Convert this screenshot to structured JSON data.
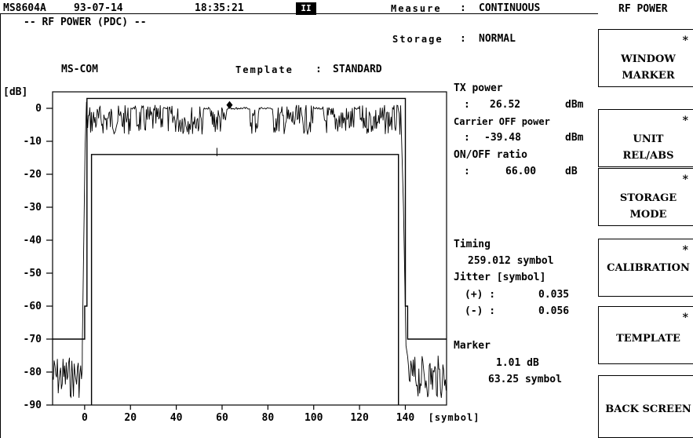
{
  "header": {
    "model": "MS8604A",
    "date": "93-07-14",
    "time": "18:35:21",
    "indicator": "II",
    "measure_label": "Measure",
    "measure_value": "CONTINUOUS",
    "screen_title": "-- RF POWER (PDC) --",
    "storage_label": "Storage",
    "storage_value": "NORMAL",
    "template_label": "Template",
    "template_value": "STANDARD",
    "mode_label": "MS-COM",
    "panel_title": "RF POWER"
  },
  "readouts": {
    "tx_power_label": "TX power",
    "tx_power_value": "26.52",
    "tx_power_unit": "dBm",
    "carrier_off_label": "Carrier OFF power",
    "carrier_off_value": "-39.48",
    "carrier_off_unit": "dBm",
    "onoff_label": "ON/OFF ratio",
    "onoff_value": "66.00",
    "onoff_unit": "dB",
    "timing_label": "Timing",
    "timing_value": "259.012 symbol",
    "jitter_label": "Jitter [symbol]",
    "jitter_plus_label": "(+) :",
    "jitter_plus_value": "0.035",
    "jitter_minus_label": "(-) :",
    "jitter_minus_value": "0.056",
    "marker_label": "Marker",
    "marker_db": "1.01 dB",
    "marker_symbol": "63.25 symbol",
    "colon": ":"
  },
  "softkeys": [
    {
      "line1": "WINDOW",
      "line2": "MARKER",
      "star": "*"
    },
    {
      "line1": "UNIT",
      "line2": "REL/ABS",
      "star": "*"
    },
    {
      "line1": "STORAGE",
      "line2": "MODE",
      "star": "*"
    },
    {
      "line1": "CALIBRATION",
      "line2": "",
      "star": "*"
    },
    {
      "line1": "TEMPLATE",
      "line2": "",
      "star": "*"
    },
    {
      "line1": "BACK SCREEN",
      "line2": "",
      "star": ""
    }
  ],
  "chart_data": {
    "type": "line",
    "ylabel": "[dB]",
    "xlabel": "[symbol]",
    "ylim": [
      -90,
      5
    ],
    "xlim": [
      -14,
      158
    ],
    "y_ticks": [
      0,
      -10,
      -20,
      -30,
      -40,
      -50,
      -60,
      -70,
      -80,
      -90
    ],
    "y_tick_labels": [
      "0",
      "-10",
      "-20",
      "-30",
      "-40",
      "-50",
      "-60",
      "-70",
      "-80",
      "-90"
    ],
    "x_ticks": [
      0,
      20,
      40,
      60,
      80,
      100,
      120,
      140
    ],
    "x_tick_labels": [
      "0",
      "20",
      "40",
      "60",
      "80",
      "100",
      "120",
      "140"
    ],
    "template_upper": {
      "x": [
        -14,
        0,
        0,
        1,
        1,
        140,
        140,
        141,
        141,
        158
      ],
      "y": [
        -70,
        -70,
        -60,
        -60,
        3,
        3,
        -60,
        -60,
        -70,
        -70
      ]
    },
    "template_lower": {
      "x": [
        3,
        3,
        137,
        137
      ],
      "y": [
        -90,
        -14,
        -14,
        -90
      ]
    },
    "marker": {
      "x": 63.25,
      "y": 1.01
    }
  }
}
